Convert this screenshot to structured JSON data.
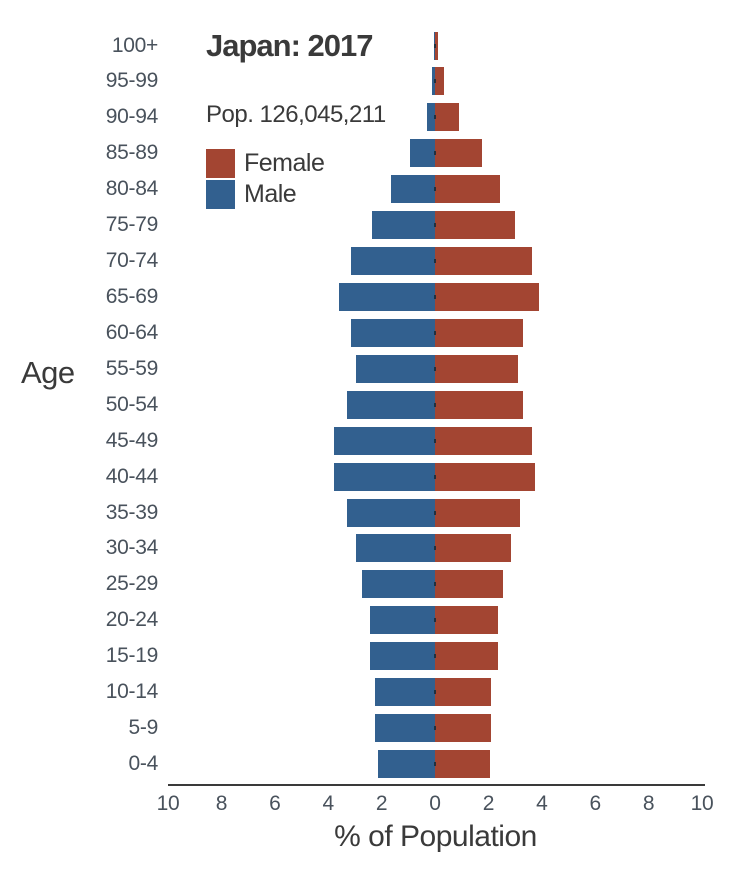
{
  "header": {
    "title": "Japan: 2017",
    "population_label": "Pop. 126,045,211"
  },
  "legend": {
    "female_label": "Female",
    "male_label": "Male"
  },
  "axes": {
    "y_label": "Age",
    "x_label": "% of Population"
  },
  "colors": {
    "male": "#32608f",
    "female": "#a34532",
    "text_dark": "#3a3a3a",
    "text_tick": "#49525c",
    "axis_line": "#3a3a3a"
  },
  "chart_data": {
    "type": "bar",
    "subtype": "population-pyramid",
    "title": "Japan: 2017",
    "subtitle": "Pop. 126,045,211",
    "xlabel": "% of Population",
    "ylabel": "Age",
    "xlim": [
      -10,
      10
    ],
    "grid": false,
    "legend_position": "upper-left",
    "x_tick_labels": [
      "10",
      "8",
      "6",
      "4",
      "2",
      "0",
      "2",
      "4",
      "6",
      "8",
      "10"
    ],
    "x_tick_values": [
      -10,
      -8,
      -6,
      -4,
      -2,
      0,
      2,
      4,
      6,
      8,
      10
    ],
    "categories": [
      "100+",
      "95-99",
      "90-94",
      "85-89",
      "80-84",
      "75-79",
      "70-74",
      "65-69",
      "60-64",
      "55-59",
      "50-54",
      "45-49",
      "40-44",
      "35-39",
      "30-34",
      "25-29",
      "20-24",
      "15-19",
      "10-14",
      "5-9",
      "0-4"
    ],
    "series": [
      {
        "name": "Male",
        "side": "left",
        "color": "#32608f",
        "values": [
          0.05,
          0.1,
          0.3,
          0.95,
          1.65,
          2.35,
          3.15,
          3.6,
          3.15,
          2.95,
          3.3,
          3.8,
          3.8,
          3.3,
          2.95,
          2.75,
          2.45,
          2.45,
          2.25,
          2.25,
          2.15
        ]
      },
      {
        "name": "Female",
        "side": "right",
        "color": "#a34532",
        "values": [
          0.1,
          0.35,
          0.9,
          1.75,
          2.45,
          3.0,
          3.65,
          3.9,
          3.3,
          3.1,
          3.3,
          3.65,
          3.75,
          3.2,
          2.85,
          2.55,
          2.35,
          2.35,
          2.1,
          2.1,
          2.05
        ]
      }
    ]
  }
}
